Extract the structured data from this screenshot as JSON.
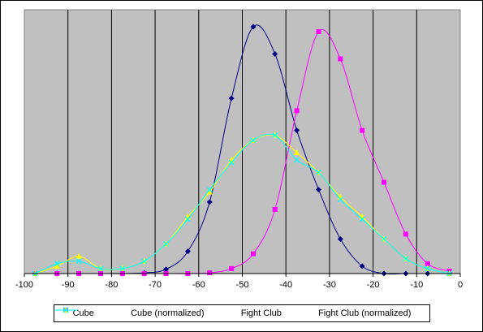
{
  "chart_data": {
    "type": "line",
    "title": "",
    "xlabel": "",
    "ylabel": "",
    "xlim": [
      -100,
      0
    ],
    "ylim": [
      0,
      1
    ],
    "x_ticks": [
      -100,
      -90,
      -80,
      -70,
      -60,
      -50,
      -40,
      -30,
      -20,
      -10,
      0
    ],
    "x_tick_labels": [
      "-100",
      "-90",
      "-80",
      "-70",
      "-60",
      "-50",
      "-40",
      "-30",
      "-20",
      "-10",
      "0"
    ],
    "plot_background": "#c0c0c0",
    "grid": "vertical",
    "legend_placement": "bottom",
    "series": [
      {
        "name": "Cube",
        "color": "#000080",
        "marker": "diamond",
        "x": [
          -97.5,
          -92.5,
          -87.5,
          -82.5,
          -77.5,
          -72.5,
          -67.5,
          -62.5,
          -57.5,
          -52.5,
          -47.5,
          -42.5,
          -37.5,
          -32.5,
          -27.5,
          -22.5,
          -17.5,
          -12.5,
          -7.5,
          -2.5
        ],
        "y": [
          0.0,
          0.0,
          0.0,
          0.0,
          0.0,
          0.003,
          0.017,
          0.09,
          0.29,
          0.71,
          1.0,
          0.89,
          0.58,
          0.34,
          0.14,
          0.03,
          0.0,
          0.0,
          0.0,
          0.0
        ]
      },
      {
        "name": "Cube (normalized)",
        "color": "#ff00ff",
        "marker": "square",
        "x": [
          -97.5,
          -92.5,
          -87.5,
          -82.5,
          -77.5,
          -72.5,
          -67.5,
          -62.5,
          -57.5,
          -52.5,
          -47.5,
          -42.5,
          -37.5,
          -32.5,
          -27.5,
          -22.5,
          -17.5,
          -12.5,
          -7.5,
          -2.5
        ],
        "y": [
          0.0,
          0.0,
          0.0,
          0.0,
          0.0,
          0.0,
          0.0,
          0.0,
          0.003,
          0.02,
          0.08,
          0.26,
          0.66,
          0.98,
          0.87,
          0.58,
          0.37,
          0.16,
          0.04,
          0.01
        ]
      },
      {
        "name": "Fight Club",
        "color": "#ffff00",
        "marker": "triangle",
        "x": [
          -97.5,
          -92.5,
          -87.5,
          -82.5,
          -77.5,
          -72.5,
          -67.5,
          -62.5,
          -57.5,
          -52.5,
          -47.5,
          -42.5,
          -37.5,
          -32.5,
          -27.5,
          -22.5,
          -17.5,
          -12.5,
          -7.5,
          -2.5
        ],
        "y": [
          0.0,
          0.03,
          0.07,
          0.02,
          0.02,
          0.05,
          0.12,
          0.23,
          0.33,
          0.46,
          0.54,
          0.56,
          0.49,
          0.41,
          0.31,
          0.23,
          0.14,
          0.06,
          0.02,
          0.0
        ]
      },
      {
        "name": "Fight Club (normalized)",
        "color": "#00ffff",
        "marker": "x",
        "x": [
          -97.5,
          -92.5,
          -87.5,
          -82.5,
          -77.5,
          -72.5,
          -67.5,
          -62.5,
          -57.5,
          -52.5,
          -47.5,
          -42.5,
          -37.5,
          -32.5,
          -27.5,
          -22.5,
          -17.5,
          -12.5,
          -7.5,
          -2.5
        ],
        "y": [
          0.0,
          0.04,
          0.05,
          0.02,
          0.02,
          0.05,
          0.12,
          0.22,
          0.34,
          0.45,
          0.54,
          0.56,
          0.46,
          0.41,
          0.3,
          0.22,
          0.14,
          0.06,
          0.02,
          0.0
        ]
      }
    ]
  }
}
